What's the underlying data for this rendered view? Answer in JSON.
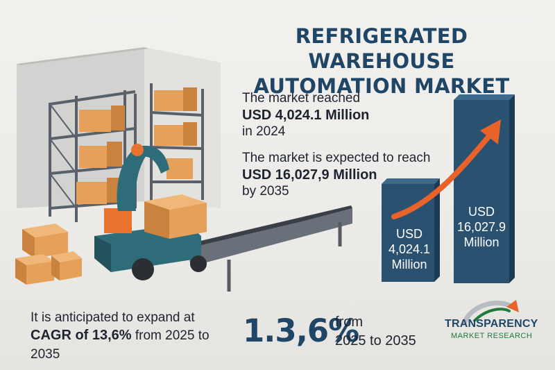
{
  "title": {
    "line1": "REFRIGERATED WAREHOUSE",
    "line2": "AUTOMATION MARKET"
  },
  "stat_2024": {
    "intro": "The market reached",
    "value": "USD 4,024.1 Million",
    "year": "in 2024"
  },
  "stat_2035": {
    "intro": "The market is expected to reach",
    "value": "USD 16,027,9 Million",
    "year": "by 2035"
  },
  "bars": {
    "small": {
      "line1": "USD",
      "line2": "4,024.1",
      "line3": "Million",
      "amount": 4024.1
    },
    "large": {
      "line1": "USD",
      "line2": "16,027.9",
      "line3": "Million",
      "amount": 16027.9
    }
  },
  "growth": {
    "line1": "It is anticipated to expand at",
    "line2_bold": "CAGR of 13,6%",
    "line2_rest": " from 2025 to 2035",
    "big_value": "1.3,6%",
    "side_line1": "from",
    "side_line2": "2025 to 2035"
  },
  "logo": {
    "name": "TRANSPARENCY",
    "sub": "MARKET RESEARCH"
  },
  "colors": {
    "navy": "#1f4666",
    "bar": "#2a5270",
    "arrow": "#e8622a",
    "box": "#e5a15a",
    "robot": "#2f6c79"
  }
}
